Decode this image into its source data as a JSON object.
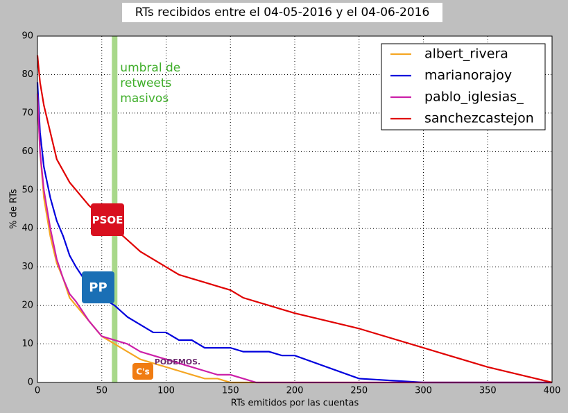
{
  "chart_data": {
    "type": "line",
    "title": "RTs recibidos entre el 04-05-2016 y el 04-06-2016",
    "xlabel": "RTs emitidos por las cuentas",
    "ylabel": "% de RTs",
    "x": [
      0,
      2,
      5,
      10,
      15,
      20,
      25,
      30,
      40,
      50,
      60,
      70,
      80,
      90,
      100,
      110,
      120,
      130,
      140,
      150,
      160,
      170,
      180,
      190,
      200,
      250,
      300,
      350,
      400
    ],
    "series": [
      {
        "name": "albert_rivera",
        "color": "#f5a623",
        "values": [
          75,
          60,
          48,
          38,
          31,
          27,
          22,
          20,
          16,
          12,
          10,
          8,
          6,
          5,
          4,
          3,
          2,
          1,
          1,
          0,
          0,
          0,
          0,
          0,
          0,
          0,
          0,
          0,
          0
        ]
      },
      {
        "name": "marianorajoy",
        "color": "#0000dd",
        "values": [
          78,
          65,
          56,
          48,
          42,
          38,
          33,
          30,
          25,
          22,
          20,
          17,
          15,
          13,
          13,
          11,
          11,
          9,
          9,
          9,
          8,
          8,
          8,
          7,
          7,
          1,
          0,
          0,
          0
        ]
      },
      {
        "name": "pablo_iglesias_",
        "color": "#cc1fa8",
        "values": [
          75,
          60,
          50,
          40,
          32,
          27,
          23,
          21,
          16,
          12,
          11,
          10,
          8,
          7,
          6,
          5,
          4,
          3,
          2,
          2,
          1,
          0,
          0,
          0,
          0,
          0,
          0,
          0,
          0
        ]
      },
      {
        "name": "sanchezcastejon",
        "color": "#e00000",
        "values": [
          85,
          78,
          72,
          65,
          58,
          55,
          52,
          50,
          46,
          43,
          40,
          37,
          34,
          32,
          30,
          28,
          27,
          26,
          25,
          24,
          22,
          21,
          20,
          19,
          18,
          14,
          9,
          4,
          0
        ]
      }
    ],
    "xlim": [
      0,
      400
    ],
    "xticks": [
      0,
      50,
      100,
      150,
      200,
      250,
      300,
      350,
      400
    ],
    "ylim": [
      0,
      90
    ],
    "yticks": [
      0,
      10,
      20,
      30,
      40,
      50,
      60,
      70,
      80,
      90
    ],
    "grid": true,
    "legend": "upper right",
    "threshold": 60,
    "threshold_color": "#a8d88a",
    "annotation": [
      "umbral de",
      "retweets",
      "masivos"
    ],
    "annotation_color": "#3fae2a",
    "logos": [
      "PSOE",
      "PP",
      "C's",
      "PODEMOS."
    ]
  }
}
